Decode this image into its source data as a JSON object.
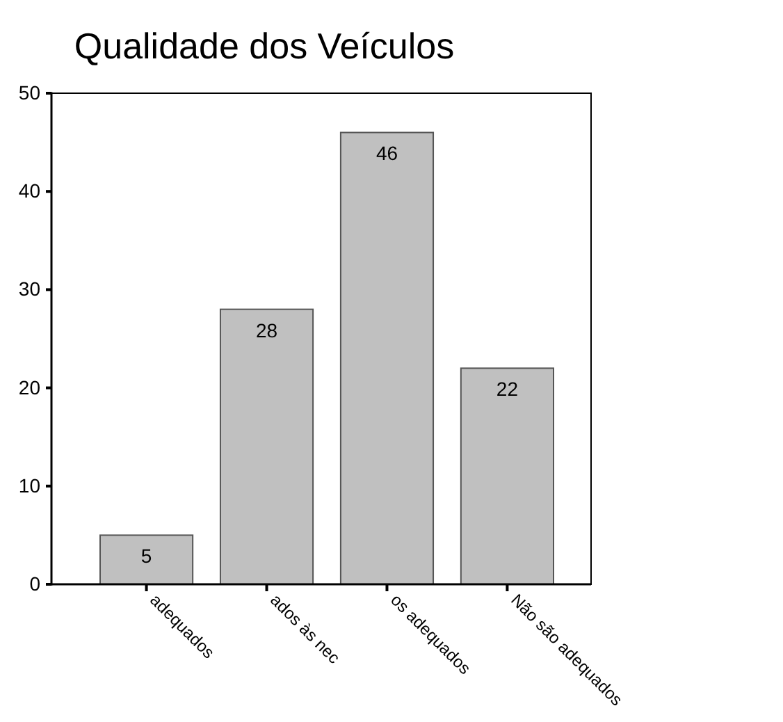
{
  "chart_data": {
    "type": "bar",
    "title": "Qualidade dos Veículos",
    "categories": [
      "adequados",
      "ados às nec",
      "os adequados",
      "Não são adequados"
    ],
    "values": [
      5,
      28,
      46,
      22
    ],
    "color": "#c0c0c0",
    "data_labels": true,
    "ylim": [
      0,
      50
    ],
    "yticks": [
      0,
      10,
      20,
      30,
      40,
      50
    ],
    "grid": false
  }
}
